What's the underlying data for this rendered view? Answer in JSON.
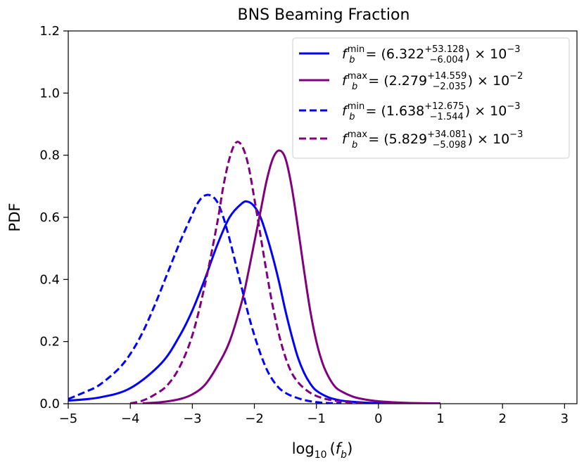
{
  "chart_data": {
    "type": "line",
    "title": "BNS Beaming Fraction",
    "xlabel": "log10(fb)",
    "xlabel_parts": {
      "log": "log",
      "sub10": "10",
      "open": "(",
      "f": "f",
      "sub_b": "b",
      "close": ")"
    },
    "ylabel": "PDF",
    "xlim": [
      -5,
      3.2
    ],
    "ylim": [
      0,
      1.2
    ],
    "xticks": [
      -5,
      -4,
      -3,
      -2,
      -1,
      0,
      1,
      2,
      3
    ],
    "xtick_labels": [
      "−5",
      "−4",
      "−3",
      "−2",
      "−1",
      "0",
      "1",
      "2",
      "3"
    ],
    "yticks": [
      0,
      0.2,
      0.4,
      0.6,
      0.8,
      1.0,
      1.2
    ],
    "ytick_labels": [
      "0.0",
      "0.2",
      "0.4",
      "0.6",
      "0.8",
      "1.0",
      "1.2"
    ],
    "legend_position": "top-right",
    "series": [
      {
        "name": "f_b^min solid",
        "color": "#0000ff",
        "dash": "solid",
        "legend": {
          "var": "f",
          "sub": "b",
          "sup": "min",
          "eq": "= (",
          "center": "6.322",
          "plus": "+53.128",
          "minus": "−6.004",
          "tail": ") × 10",
          "exp": "−3"
        },
        "x": [
          -5.0,
          -4.5,
          -4.0,
          -3.5,
          -3.2,
          -3.0,
          -2.8,
          -2.6,
          -2.4,
          -2.2,
          -2.1,
          -2.0,
          -1.9,
          -1.8,
          -1.7,
          -1.6,
          -1.5,
          -1.4,
          -1.3,
          -1.2,
          -1.1,
          -1.0,
          -0.8,
          -0.6,
          -0.4,
          -0.2,
          0.0,
          0.5,
          1.0
        ],
        "y": [
          0.01,
          0.02,
          0.05,
          0.13,
          0.22,
          0.3,
          0.4,
          0.51,
          0.6,
          0.645,
          0.65,
          0.635,
          0.6,
          0.54,
          0.47,
          0.39,
          0.3,
          0.22,
          0.15,
          0.1,
          0.065,
          0.042,
          0.02,
          0.01,
          0.006,
          0.003,
          0.002,
          0.001,
          0.0
        ]
      },
      {
        "name": "f_b^max solid",
        "color": "#800080",
        "dash": "solid",
        "legend": {
          "var": "f",
          "sub": "b",
          "sup": "max",
          "eq": "= (",
          "center": "2.279",
          "plus": "+14.559",
          "minus": "−2.035",
          "tail": ") × 10",
          "exp": "−2"
        },
        "x": [
          -3.8,
          -3.5,
          -3.2,
          -3.0,
          -2.8,
          -2.6,
          -2.4,
          -2.2,
          -2.1,
          -2.0,
          -1.9,
          -1.8,
          -1.7,
          -1.6,
          -1.5,
          -1.4,
          -1.3,
          -1.2,
          -1.1,
          -1.0,
          -0.9,
          -0.8,
          -0.7,
          -0.6,
          -0.4,
          -0.2,
          0.0,
          0.3,
          0.6,
          1.0
        ],
        "y": [
          0.0,
          0.005,
          0.015,
          0.03,
          0.06,
          0.12,
          0.2,
          0.33,
          0.42,
          0.52,
          0.62,
          0.72,
          0.79,
          0.815,
          0.79,
          0.7,
          0.57,
          0.43,
          0.3,
          0.2,
          0.13,
          0.085,
          0.055,
          0.04,
          0.022,
          0.013,
          0.008,
          0.004,
          0.002,
          0.0
        ]
      },
      {
        "name": "f_b^min dashed",
        "color": "#0000ff",
        "dash": "dashed",
        "legend": {
          "var": "f",
          "sub": "b",
          "sup": "min",
          "eq": "= (",
          "center": "1.638",
          "plus": "+12.675",
          "minus": "−1.544",
          "tail": ") × 10",
          "exp": "−3"
        },
        "x": [
          -5.0,
          -4.7,
          -4.5,
          -4.2,
          -4.0,
          -3.8,
          -3.6,
          -3.4,
          -3.2,
          -3.0,
          -2.9,
          -2.8,
          -2.7,
          -2.6,
          -2.5,
          -2.4,
          -2.3,
          -2.2,
          -2.1,
          -2.0,
          -1.9,
          -1.8,
          -1.7,
          -1.6,
          -1.5,
          -1.4,
          -1.2,
          -1.0,
          -0.8,
          -0.6
        ],
        "y": [
          0.015,
          0.04,
          0.06,
          0.11,
          0.16,
          0.23,
          0.32,
          0.42,
          0.52,
          0.61,
          0.65,
          0.67,
          0.67,
          0.65,
          0.6,
          0.53,
          0.45,
          0.37,
          0.29,
          0.22,
          0.16,
          0.11,
          0.075,
          0.05,
          0.035,
          0.025,
          0.012,
          0.005,
          0.002,
          0.0
        ]
      },
      {
        "name": "f_b^max dashed",
        "color": "#800080",
        "dash": "dashed",
        "legend": {
          "var": "f",
          "sub": "b",
          "sup": "max",
          "eq": "= (",
          "center": "5.829",
          "plus": "+34.081",
          "minus": "−5.098",
          "tail": ") × 10",
          "exp": "−3"
        },
        "x": [
          -4.0,
          -3.8,
          -3.6,
          -3.4,
          -3.2,
          -3.0,
          -2.8,
          -2.6,
          -2.5,
          -2.4,
          -2.3,
          -2.2,
          -2.1,
          -2.0,
          -1.9,
          -1.8,
          -1.7,
          -1.6,
          -1.5,
          -1.4,
          -1.3,
          -1.2,
          -1.1,
          -1.0,
          -0.9,
          -0.8,
          -0.6,
          -0.4,
          -0.2
        ],
        "y": [
          0.0,
          0.01,
          0.03,
          0.06,
          0.12,
          0.22,
          0.38,
          0.58,
          0.7,
          0.79,
          0.84,
          0.83,
          0.77,
          0.66,
          0.54,
          0.42,
          0.31,
          0.22,
          0.15,
          0.1,
          0.07,
          0.05,
          0.035,
          0.025,
          0.018,
          0.013,
          0.007,
          0.003,
          0.0
        ]
      }
    ]
  }
}
